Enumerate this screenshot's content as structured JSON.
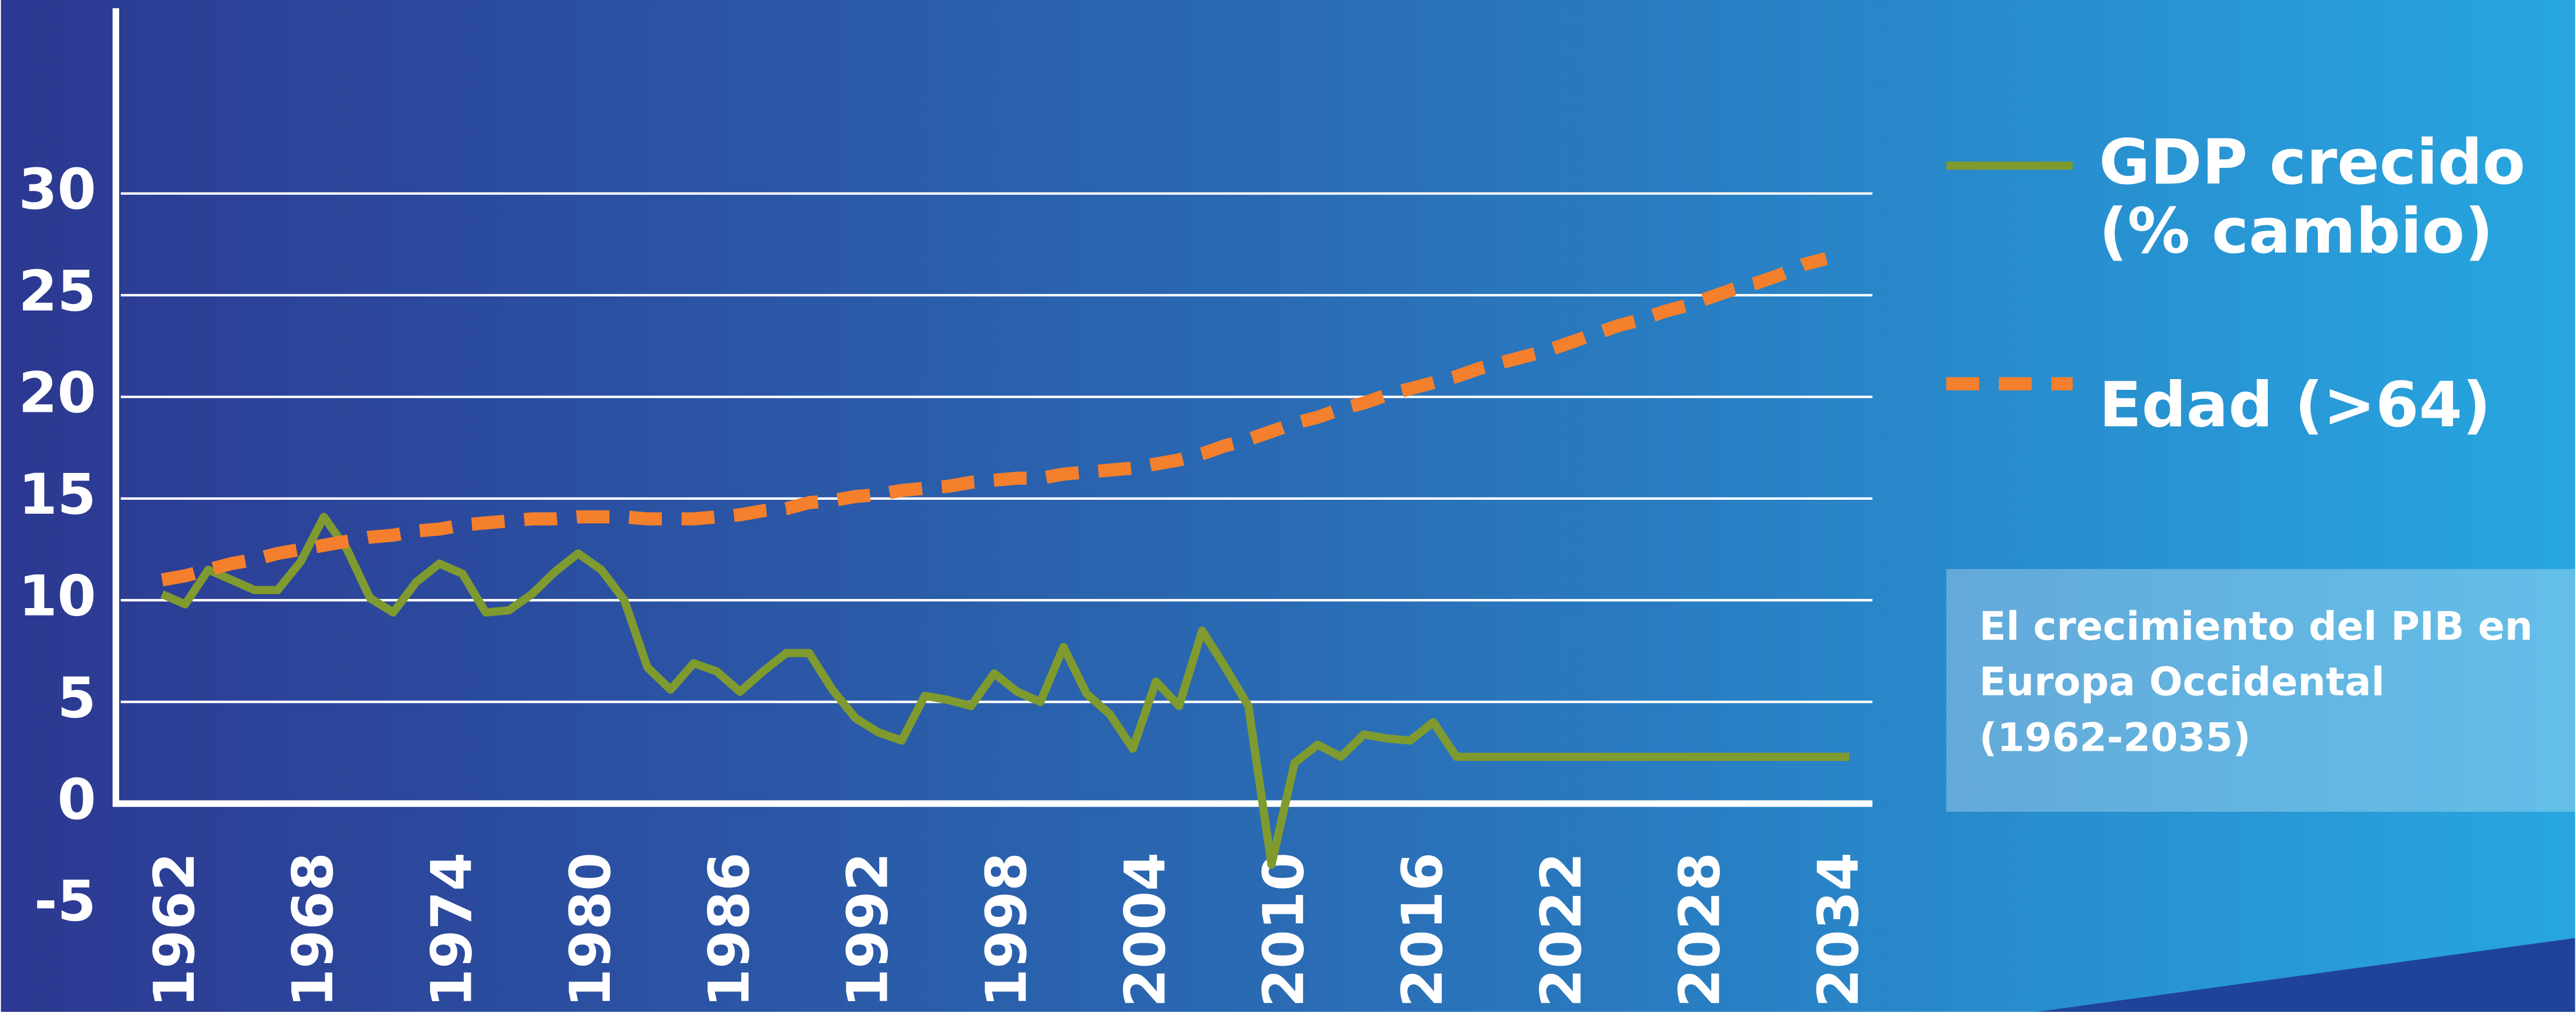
{
  "chart_data": {
    "type": "line",
    "x": [
      1962,
      1963,
      1964,
      1965,
      1966,
      1967,
      1968,
      1969,
      1970,
      1971,
      1972,
      1973,
      1974,
      1975,
      1976,
      1977,
      1978,
      1979,
      1980,
      1981,
      1982,
      1983,
      1984,
      1985,
      1986,
      1987,
      1988,
      1989,
      1990,
      1991,
      1992,
      1993,
      1994,
      1995,
      1996,
      1997,
      1998,
      1999,
      2000,
      2001,
      2002,
      2003,
      2004,
      2005,
      2006,
      2007,
      2008,
      2009,
      2010,
      2011,
      2012,
      2013,
      2014,
      2015,
      2016,
      2017,
      2018,
      2019,
      2020,
      2021,
      2022,
      2023,
      2024,
      2025,
      2026,
      2027,
      2028,
      2029,
      2030,
      2031,
      2032,
      2033,
      2034,
      2035
    ],
    "series": [
      {
        "name": "GDP crecido (% cambio)",
        "color": "#7f9a2e",
        "dashed": false,
        "values": [
          10.3,
          9.8,
          11.5,
          11.0,
          10.5,
          10.5,
          11.9,
          14.1,
          12.5,
          10.1,
          9.4,
          10.9,
          11.8,
          11.3,
          9.4,
          9.5,
          10.3,
          11.4,
          12.3,
          11.5,
          10.0,
          6.7,
          5.6,
          6.9,
          6.5,
          5.5,
          6.5,
          7.4,
          7.4,
          5.6,
          4.2,
          3.5,
          3.1,
          5.3,
          5.1,
          4.8,
          6.4,
          5.5,
          5.0,
          7.7,
          5.4,
          4.4,
          2.7,
          6.0,
          4.8,
          8.5,
          6.7,
          4.8,
          -3.0,
          2.0,
          2.9,
          2.3,
          3.4,
          3.2,
          3.1,
          4.0,
          2.3,
          2.3,
          2.3,
          2.3,
          2.3,
          2.3,
          2.3,
          2.3,
          2.3,
          2.3,
          2.3,
          2.3,
          2.3,
          2.3,
          2.3,
          2.3,
          2.3,
          2.3
        ]
      },
      {
        "name": "Edad (>64)",
        "color": "#f47f2c",
        "dashed": true,
        "values": [
          11.0,
          11.2,
          11.5,
          11.8,
          12.0,
          12.3,
          12.5,
          12.7,
          12.9,
          13.1,
          13.2,
          13.4,
          13.5,
          13.7,
          13.8,
          13.9,
          14.0,
          14.0,
          14.1,
          14.1,
          14.1,
          14.0,
          14.0,
          14.0,
          14.1,
          14.2,
          14.4,
          14.5,
          14.8,
          14.9,
          15.1,
          15.2,
          15.4,
          15.5,
          15.6,
          15.8,
          15.9,
          16.0,
          16.0,
          16.2,
          16.3,
          16.4,
          16.5,
          16.7,
          16.9,
          17.2,
          17.6,
          17.9,
          18.3,
          18.7,
          19.0,
          19.4,
          19.7,
          20.1,
          20.4,
          20.7,
          21.0,
          21.4,
          21.7,
          22.0,
          22.3,
          22.7,
          23.1,
          23.5,
          23.8,
          24.2,
          24.5,
          24.9,
          25.3,
          25.6,
          26.0,
          26.5,
          26.8,
          null
        ]
      }
    ],
    "xlim": [
      1960,
      2036
    ],
    "xticks": [
      1962,
      1968,
      1974,
      1980,
      1986,
      1992,
      1998,
      2004,
      2010,
      2016,
      2022,
      2028,
      2034
    ],
    "ylim": [
      -5,
      39
    ],
    "yticks": [
      -5,
      0,
      5,
      10,
      15,
      20,
      25,
      30
    ],
    "grid": true,
    "annotation": "El crecimiento del PIB en Europa Occidental (1962-2035)"
  }
}
